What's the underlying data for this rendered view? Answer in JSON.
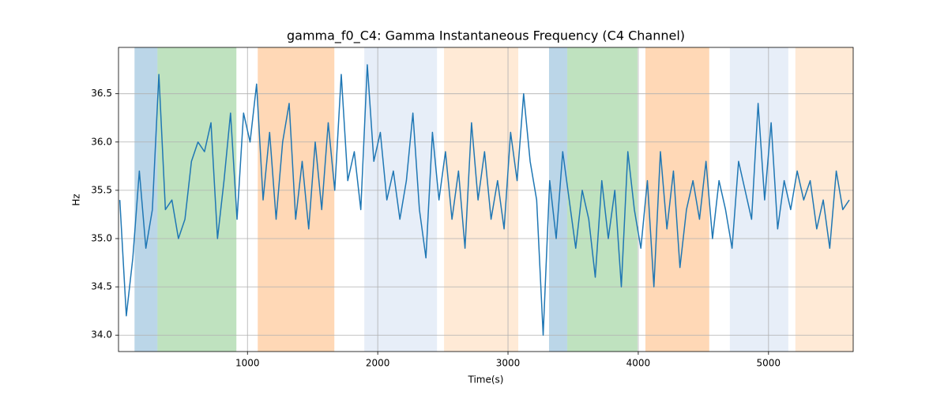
{
  "chart_data": {
    "type": "line",
    "title": "gamma_f0_C4: Gamma Instantaneous Frequency (C4 Channel)",
    "x_label": "Time(s)",
    "y_label": "Hz",
    "xlim": [
      10,
      5650
    ],
    "ylim": [
      33.83,
      36.98
    ],
    "xticks": [
      1000,
      2000,
      3000,
      4000,
      5000
    ],
    "yticks": [
      {
        "value": 34,
        "label": "34.0"
      },
      34.5,
      {
        "value": 35,
        "label": "35.0"
      },
      35.5,
      {
        "value": 36,
        "label": "36.0"
      },
      36.5
    ],
    "grid": true,
    "spans": [
      {
        "start": 133,
        "end": 309,
        "color": "#1f77b4",
        "opacity": 0.3
      },
      {
        "start": 309,
        "end": 915,
        "color": "#2ca02c",
        "opacity": 0.3
      },
      {
        "start": 1079,
        "end": 1667,
        "color": "#ff7f0e",
        "opacity": 0.3
      },
      {
        "start": 1897,
        "end": 2455,
        "color": "#aec7e8",
        "opacity": 0.3
      },
      {
        "start": 2509,
        "end": 3079,
        "color": "#ffbb78",
        "opacity": 0.3
      },
      {
        "start": 3315,
        "end": 3455,
        "color": "#1f77b4",
        "opacity": 0.3
      },
      {
        "start": 3455,
        "end": 3994,
        "color": "#2ca02c",
        "opacity": 0.3
      },
      {
        "start": 4055,
        "end": 4545,
        "color": "#ff7f0e",
        "opacity": 0.3
      },
      {
        "start": 4703,
        "end": 5152,
        "color": "#aec7e8",
        "opacity": 0.3
      },
      {
        "start": 5206,
        "end": 5650,
        "color": "#ffbb78",
        "opacity": 0.3
      }
    ],
    "x": [
      20,
      70,
      120,
      170,
      220,
      270,
      320,
      370,
      420,
      470,
      520,
      570,
      620,
      670,
      720,
      770,
      820,
      870,
      920,
      970,
      1020,
      1070,
      1120,
      1170,
      1220,
      1270,
      1320,
      1370,
      1420,
      1470,
      1520,
      1570,
      1620,
      1670,
      1720,
      1770,
      1820,
      1870,
      1920,
      1970,
      2020,
      2070,
      2120,
      2170,
      2220,
      2270,
      2320,
      2370,
      2420,
      2470,
      2520,
      2570,
      2620,
      2670,
      2720,
      2770,
      2820,
      2870,
      2920,
      2970,
      3020,
      3070,
      3120,
      3170,
      3220,
      3270,
      3320,
      3370,
      3420,
      3470,
      3520,
      3570,
      3620,
      3670,
      3720,
      3770,
      3820,
      3870,
      3920,
      3970,
      4020,
      4070,
      4120,
      4170,
      4220,
      4270,
      4320,
      4370,
      4420,
      4470,
      4520,
      4570,
      4620,
      4670,
      4720,
      4770,
      4820,
      4870,
      4920,
      4970,
      5020,
      5070,
      5120,
      5170,
      5220,
      5270,
      5320,
      5370,
      5420,
      5470,
      5520,
      5570,
      5620
    ],
    "series": [
      {
        "color": "#1f77b4",
        "values": [
          35.4,
          34.2,
          34.8,
          35.7,
          34.9,
          35.3,
          36.7,
          35.3,
          35.4,
          35.0,
          35.2,
          35.8,
          36.0,
          35.9,
          36.2,
          35.0,
          35.6,
          36.3,
          35.2,
          36.3,
          36.0,
          36.6,
          35.4,
          36.1,
          35.2,
          36.0,
          36.4,
          35.2,
          35.8,
          35.1,
          36.0,
          35.3,
          36.2,
          35.5,
          36.7,
          35.6,
          35.9,
          35.3,
          36.8,
          35.8,
          36.1,
          35.4,
          35.7,
          35.2,
          35.6,
          36.3,
          35.3,
          34.8,
          36.1,
          35.4,
          35.9,
          35.2,
          35.7,
          34.9,
          36.2,
          35.4,
          35.9,
          35.2,
          35.6,
          35.1,
          36.1,
          35.6,
          36.5,
          35.8,
          35.4,
          34.0,
          35.6,
          35.0,
          35.9,
          35.4,
          34.9,
          35.5,
          35.2,
          34.6,
          35.6,
          35.0,
          35.5,
          34.5,
          35.9,
          35.3,
          34.9,
          35.6,
          34.5,
          35.9,
          35.1,
          35.7,
          34.7,
          35.3,
          35.6,
          35.2,
          35.8,
          35.0,
          35.6,
          35.3,
          34.9,
          35.8,
          35.5,
          35.2,
          36.4,
          35.4,
          36.2,
          35.1,
          35.6,
          35.3,
          35.7,
          35.4,
          35.6,
          35.1,
          35.4,
          34.9,
          35.7,
          35.3,
          35.4
        ]
      }
    ]
  }
}
